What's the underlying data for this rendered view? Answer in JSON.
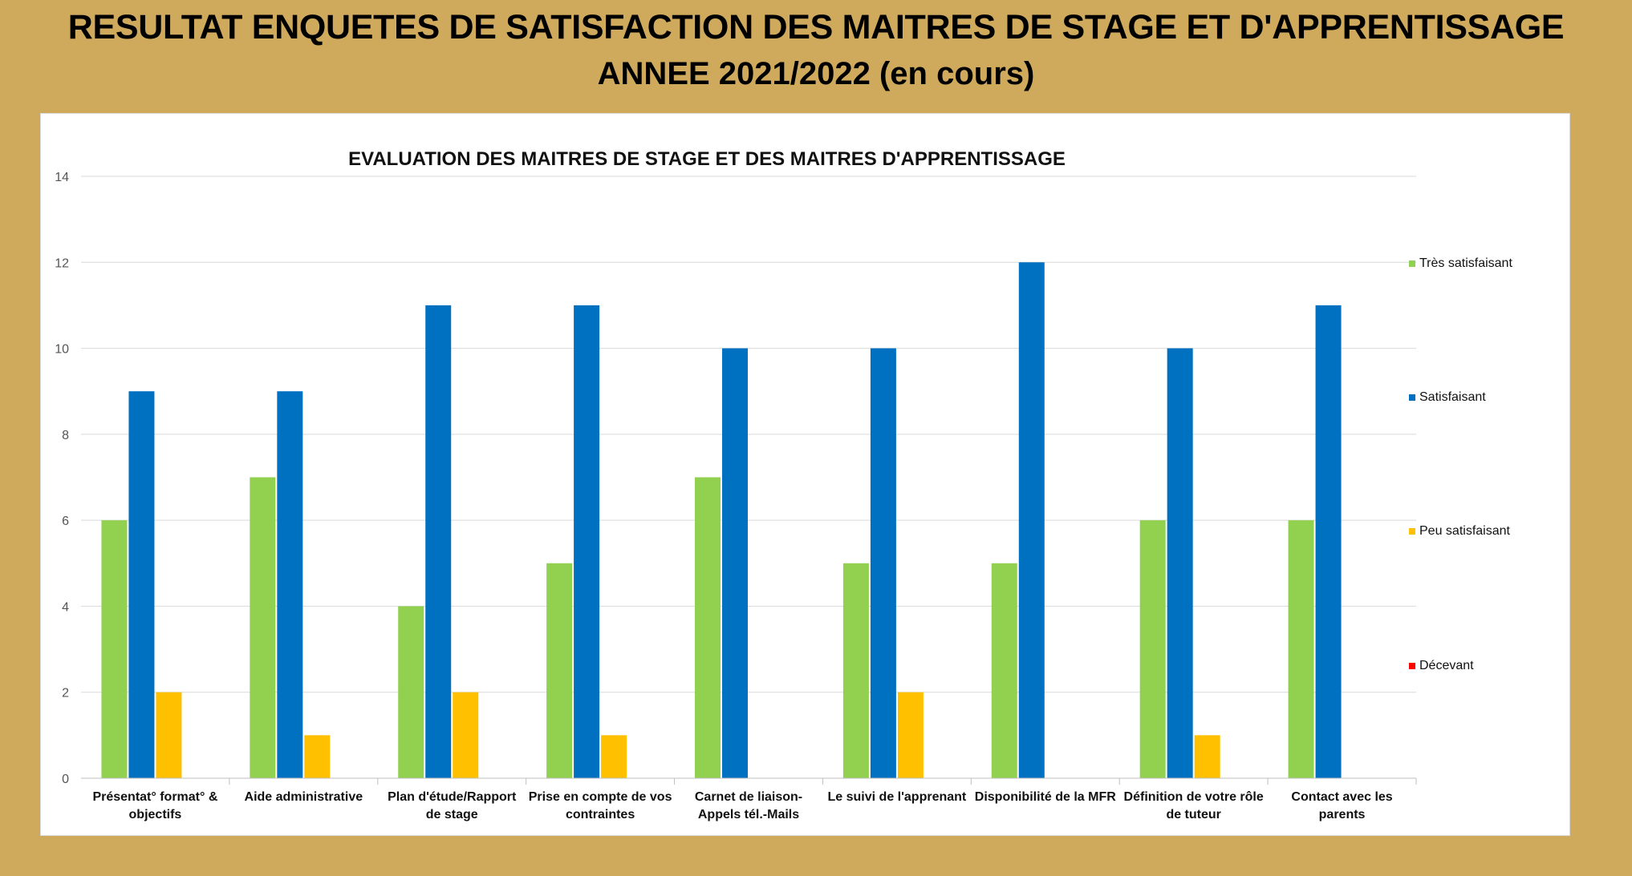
{
  "header": {
    "title": "RESULTAT ENQUETES DE SATISFACTION DES MAITRES DE STAGE ET D'APPRENTISSAGE",
    "subtitle": "ANNEE 2021/2022 (en cours)"
  },
  "chart_data": {
    "type": "bar",
    "title": "EVALUATION DES MAITRES DE STAGE ET DES MAITRES D'APPRENTISSAGE",
    "xlabel": "",
    "ylabel": "",
    "ylim": [
      0,
      14
    ],
    "yticks": [
      0,
      2,
      4,
      6,
      8,
      10,
      12,
      14
    ],
    "grid": true,
    "legend_position": "right",
    "categories": [
      [
        "Présentat° format° &",
        "objectifs"
      ],
      [
        "Aide administrative"
      ],
      [
        "Plan d'étude/Rapport",
        "de stage"
      ],
      [
        "Prise en compte de vos",
        "contraintes"
      ],
      [
        "Carnet de liaison-",
        "Appels tél.-Mails"
      ],
      [
        "Le suivi de l'apprenant"
      ],
      [
        "Disponibilité de la MFR"
      ],
      [
        "Définition de votre rôle",
        "de tuteur"
      ],
      [
        "Contact avec les",
        "parents"
      ]
    ],
    "series": [
      {
        "name": "Très satisfaisant",
        "color": "#92d050",
        "values": [
          6,
          7,
          4,
          5,
          7,
          5,
          5,
          6,
          6
        ]
      },
      {
        "name": "Satisfaisant",
        "color": "#0070c0",
        "values": [
          9,
          9,
          11,
          11,
          10,
          10,
          12,
          10,
          11
        ]
      },
      {
        "name": "Peu satisfaisant",
        "color": "#ffc000",
        "values": [
          2,
          1,
          2,
          1,
          0,
          2,
          0,
          1,
          0
        ]
      },
      {
        "name": "Décevant",
        "color": "#ff0000",
        "values": [
          0,
          0,
          0,
          0,
          0,
          0,
          0,
          0,
          0
        ]
      }
    ]
  }
}
